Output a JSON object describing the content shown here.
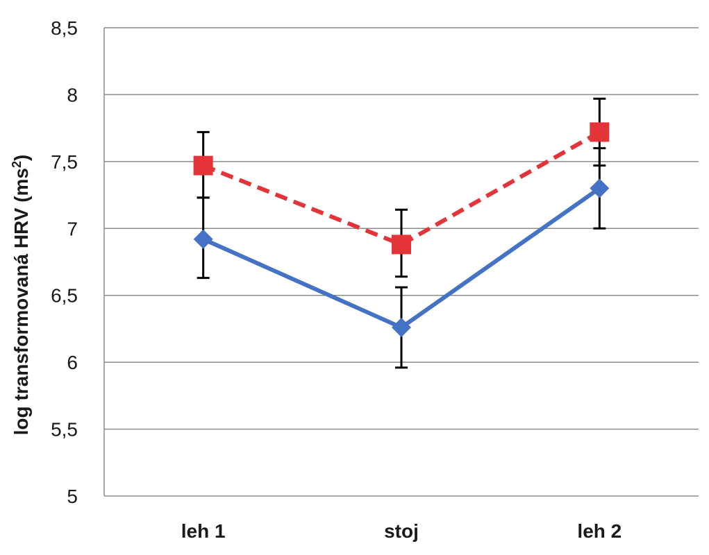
{
  "chart_data": {
    "type": "line",
    "title": "",
    "xlabel": "",
    "ylabel": "log transformovaná HRV (ms",
    "ylabel_sup": "2",
    "ylabel_end": ")",
    "categories": [
      "leh 1",
      "stoj",
      "leh 2"
    ],
    "ylim": [
      5,
      8.5
    ],
    "yticks": [
      5,
      5.5,
      6,
      6.5,
      7,
      7.5,
      8,
      8.5
    ],
    "ytick_labels": [
      "5",
      "5,5",
      "6",
      "6,5",
      "7",
      "7,5",
      "8",
      "8,5"
    ],
    "grid": true,
    "legend": "none",
    "series": [
      {
        "color": "#4472C4",
        "line_style": "solid",
        "marker": "diamond",
        "values": [
          6.92,
          6.26,
          7.3
        ],
        "error_low": [
          6.63,
          5.96,
          7.0
        ],
        "error_high": [
          7.23,
          6.56,
          7.6
        ]
      },
      {
        "color": "#E3343A",
        "line_style": "dashed",
        "marker": "square",
        "values": [
          7.47,
          6.88,
          7.72
        ],
        "error_low": [
          7.23,
          6.64,
          7.47
        ],
        "error_high": [
          7.72,
          7.14,
          7.97
        ]
      }
    ]
  }
}
